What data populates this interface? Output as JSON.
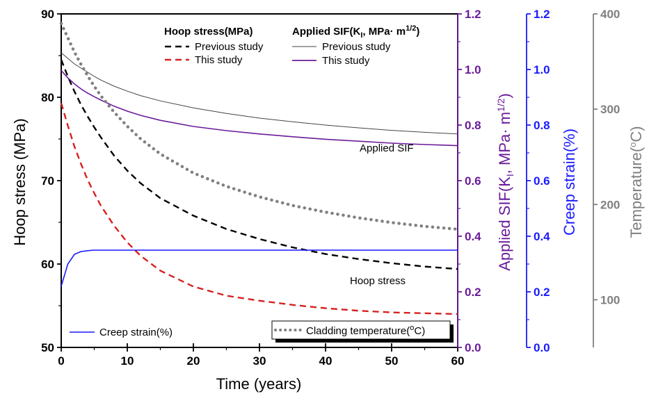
{
  "chart_data": {
    "type": "line",
    "x": [
      0,
      1,
      2,
      3,
      4,
      5,
      6,
      8,
      10,
      12,
      15,
      20,
      25,
      30,
      35,
      40,
      45,
      50,
      55,
      60
    ],
    "xlabel": "Time (years)",
    "xlim": [
      0,
      60
    ],
    "x_ticks": [
      "0",
      "10",
      "20",
      "30",
      "40",
      "50",
      "60"
    ],
    "axes": {
      "hoop": {
        "label": "Hoop stress (MPa)",
        "lim": [
          50,
          90
        ],
        "ticks": [
          "50",
          "60",
          "70",
          "80",
          "90"
        ],
        "color": "#000000"
      },
      "sif": {
        "label_main": "Applied SIF(K",
        "label_sub": "I",
        "label_mid": ", MPa· m",
        "label_sup": "1/2",
        "label_end": ")",
        "lim": [
          0.0,
          1.2
        ],
        "ticks": [
          "0.0",
          "0.2",
          "0.4",
          "0.6",
          "0.8",
          "1.0",
          "1.2"
        ],
        "color": "#6a1b9a"
      },
      "creep": {
        "label": "Creep strain(%)",
        "lim": [
          0.0,
          1.2
        ],
        "ticks": [
          "0.0",
          "0.2",
          "0.4",
          "0.6",
          "0.8",
          "1.0",
          "1.2"
        ],
        "color": "#1a1aff"
      },
      "temp": {
        "label_main": "Temperature(",
        "label_sup": "o",
        "label_end": "C)",
        "lim": [
          50,
          400
        ],
        "ticks": [
          "100",
          "200",
          "300",
          "400"
        ],
        "color": "#7f7f7f"
      }
    },
    "series": [
      {
        "key": "hoop_prev",
        "axis": "hoop",
        "color": "#000000",
        "style": "dashed",
        "values": [
          84.5,
          82.5,
          80.7,
          79.1,
          77.7,
          76.4,
          75.2,
          73.0,
          71.2,
          69.7,
          67.9,
          65.8,
          64.2,
          63.0,
          62.0,
          61.2,
          60.6,
          60.1,
          59.7,
          59.4
        ]
      },
      {
        "key": "hoop_this",
        "axis": "hoop",
        "color": "#d62020",
        "style": "dashed",
        "values": [
          79.3,
          76.6,
          74.1,
          72.0,
          70.1,
          68.5,
          67.0,
          64.6,
          62.6,
          61.0,
          59.2,
          57.3,
          56.2,
          55.6,
          55.1,
          54.7,
          54.4,
          54.2,
          54.1,
          54.0
        ]
      },
      {
        "key": "sif_prev",
        "axis": "sif",
        "color": "#444444",
        "style": "thin",
        "values": [
          1.06,
          1.04,
          1.02,
          1.005,
          0.99,
          0.975,
          0.962,
          0.94,
          0.922,
          0.906,
          0.887,
          0.862,
          0.842,
          0.825,
          0.812,
          0.8,
          0.79,
          0.781,
          0.774,
          0.768
        ]
      },
      {
        "key": "sif_this",
        "axis": "sif",
        "color": "#6a1b9a",
        "style": "solid",
        "values": [
          0.996,
          0.97,
          0.948,
          0.93,
          0.915,
          0.902,
          0.89,
          0.868,
          0.85,
          0.835,
          0.817,
          0.795,
          0.78,
          0.768,
          0.758,
          0.749,
          0.742,
          0.735,
          0.73,
          0.726
        ]
      },
      {
        "key": "creep",
        "axis": "creep",
        "color": "#1a1aff",
        "style": "solid",
        "values": [
          0.22,
          0.3,
          0.335,
          0.345,
          0.348,
          0.35,
          0.35,
          0.35,
          0.35,
          0.35,
          0.35,
          0.35,
          0.35,
          0.35,
          0.35,
          0.35,
          0.35,
          0.35,
          0.35,
          0.35
        ]
      },
      {
        "key": "temp",
        "axis": "temp",
        "color": "#808080",
        "style": "dotted",
        "values": [
          390,
          375,
          360,
          347,
          335,
          324,
          314,
          297,
          282,
          269,
          253,
          233,
          219,
          208,
          199,
          192,
          186,
          181,
          177,
          174
        ]
      }
    ],
    "legend": {
      "hoop_head": "Hoop stress(MPa)",
      "sif_head_main": "Applied SIF(K",
      "sif_head_sub": "I",
      "sif_head_mid": ", MPa· m",
      "sif_head_sup": "1/2",
      "sif_head_end": ")",
      "hoop_prev": "Previous study",
      "hoop_this": "This study",
      "sif_prev": "Previous study",
      "sif_this": "This study",
      "creep": "Creep strain(%)",
      "temp_main": "Cladding temperature(",
      "temp_sup": "o",
      "temp_end": "C)"
    },
    "annotations": {
      "sif": "Applied SIF",
      "hoop": "Hoop stress"
    }
  }
}
